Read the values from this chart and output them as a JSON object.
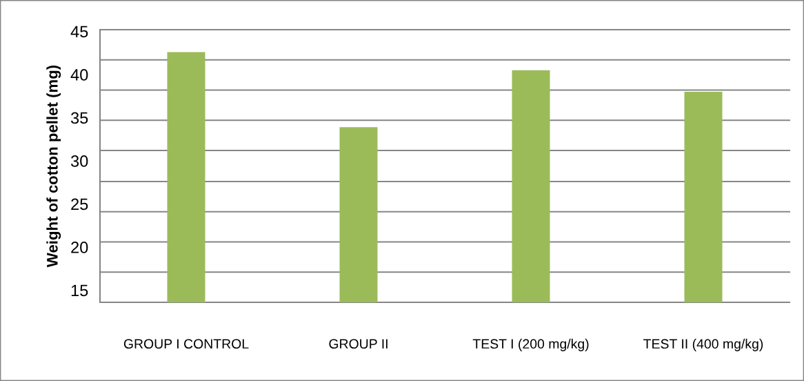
{
  "chart_data": {
    "type": "bar",
    "ylabel": "Weight of cotton pellet (mg)",
    "categories": [
      "GROUP I CONTROL",
      "GROUP II",
      "TEST I (200 mg/kg)",
      "TEST II (400 mg/kg)"
    ],
    "values": [
      42.6,
      33.9,
      40.5,
      38.0
    ],
    "color": "#9bbb59",
    "ylim": [
      13.6,
      45.2
    ],
    "yticks": [
      15,
      20,
      25,
      30,
      35,
      40,
      45
    ],
    "grid": false,
    "ref_lines": [
      {
        "axis": "y",
        "value": 17.1,
        "color": "#868686"
      },
      {
        "axis": "y",
        "value": 20.6,
        "color": "#868686"
      },
      {
        "axis": "y",
        "value": 24.1,
        "color": "#868686"
      },
      {
        "axis": "y",
        "value": 27.6,
        "color": "#868686"
      },
      {
        "axis": "y",
        "value": 31.2,
        "color": "#868686"
      },
      {
        "axis": "y",
        "value": 34.7,
        "color": "#868686"
      },
      {
        "axis": "y",
        "value": 38.2,
        "color": "#868686"
      },
      {
        "axis": "y",
        "value": 41.7,
        "color": "#868686"
      },
      {
        "axis": "y",
        "value": 45.2,
        "color": "#868686"
      }
    ]
  }
}
